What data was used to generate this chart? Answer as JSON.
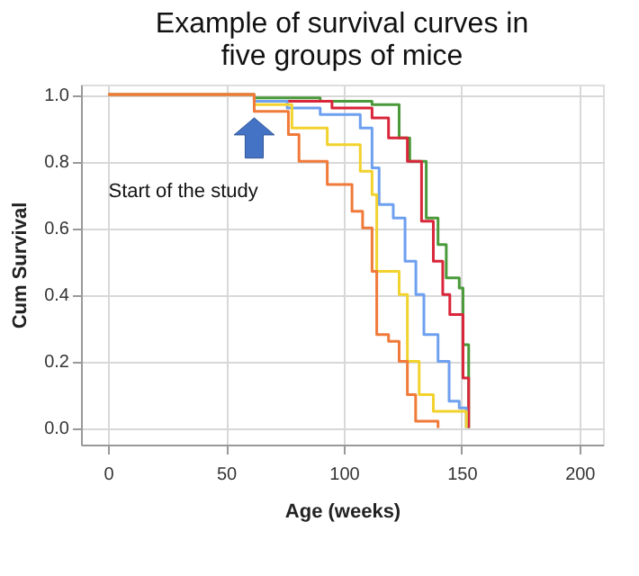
{
  "chart_data": {
    "type": "step",
    "title": "Example of survival curves in\nfive groups of mice",
    "xlabel": "Age (weeks)",
    "ylabel": "Cum Survival",
    "xlim": [
      -11.5,
      210
    ],
    "xticks": [
      0,
      50,
      100,
      150,
      200
    ],
    "ylim": [
      -0.05,
      1.03
    ],
    "yticks": [
      {
        "value": 0,
        "label": "0.0"
      },
      0.2,
      0.4,
      0.6,
      0.8,
      {
        "value": 1,
        "label": "1.0"
      }
    ],
    "grid": true,
    "line_style": "solid",
    "marker": "none",
    "annotations": [
      {
        "text": "Start of the study",
        "x": 62,
        "y": 0.87
      }
    ],
    "series": [
      {
        "color": "#4a9a3a",
        "x": [
          0,
          62,
          90,
          112,
          123.5,
          128,
          135,
          140,
          143.5,
          149,
          150.6,
          153
        ],
        "values": [
          1.0,
          0.99,
          0.98,
          0.97,
          0.87,
          0.8,
          0.63,
          0.55,
          0.45,
          0.42,
          0.25,
          0.0
        ]
      },
      {
        "color": "#d9263a",
        "x": [
          0,
          62,
          95,
          112,
          119,
          127,
          133,
          138,
          142,
          145,
          149,
          150.6,
          153
        ],
        "values": [
          1.0,
          0.98,
          0.96,
          0.93,
          0.87,
          0.8,
          0.62,
          0.5,
          0.4,
          0.34,
          0.34,
          0.15,
          0.0
        ]
      },
      {
        "color": "#6ea0f0",
        "x": [
          0,
          62,
          76,
          90,
          107,
          112,
          115,
          121,
          126,
          130.6,
          134,
          140,
          144.7,
          149,
          152
        ],
        "values": [
          1.0,
          0.98,
          0.96,
          0.94,
          0.9,
          0.78,
          0.67,
          0.63,
          0.5,
          0.4,
          0.28,
          0.2,
          0.08,
          0.06,
          0.0
        ]
      },
      {
        "color": "#f2d22e",
        "x": [
          0,
          62,
          78,
          93,
          107,
          112,
          114,
          123.5,
          127,
          132,
          138,
          152
        ],
        "values": [
          1.0,
          0.97,
          0.9,
          0.85,
          0.77,
          0.7,
          0.47,
          0.4,
          0.2,
          0.1,
          0.05,
          0.0
        ]
      },
      {
        "color": "#f07a3a",
        "x": [
          0,
          62,
          76.5,
          81,
          93,
          103.5,
          108,
          112,
          114,
          119,
          123.5,
          127,
          130.5,
          140
        ],
        "values": [
          1.0,
          0.95,
          0.88,
          0.8,
          0.73,
          0.65,
          0.6,
          0.47,
          0.28,
          0.26,
          0.2,
          0.1,
          0.02,
          0.0
        ]
      }
    ]
  }
}
